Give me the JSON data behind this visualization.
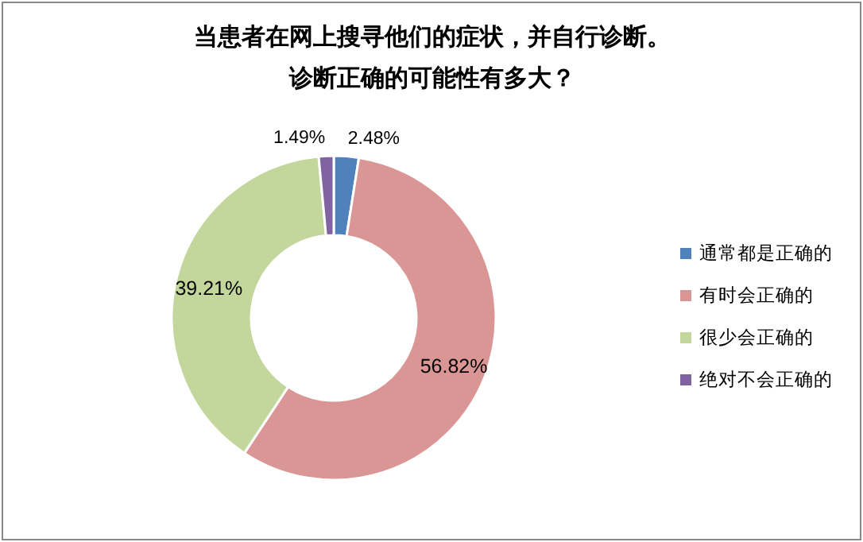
{
  "chart_data": {
    "type": "donut",
    "title": "当患者在网上搜寻他们的症状，并自行诊断。",
    "subtitle": "诊断正确的可能性有多大？",
    "categories": [
      "通常都是正确的",
      "有时会正确的",
      "很少会正确的",
      "绝对不会正确的"
    ],
    "values": [
      2.48,
      56.82,
      39.21,
      1.49
    ],
    "colors": [
      "#4f81bd",
      "#d99694",
      "#c3d69b",
      "#8064a2"
    ],
    "value_labels": [
      "2.48%",
      "56.82%",
      "39.21%",
      "1.49%"
    ],
    "legend": "right"
  }
}
